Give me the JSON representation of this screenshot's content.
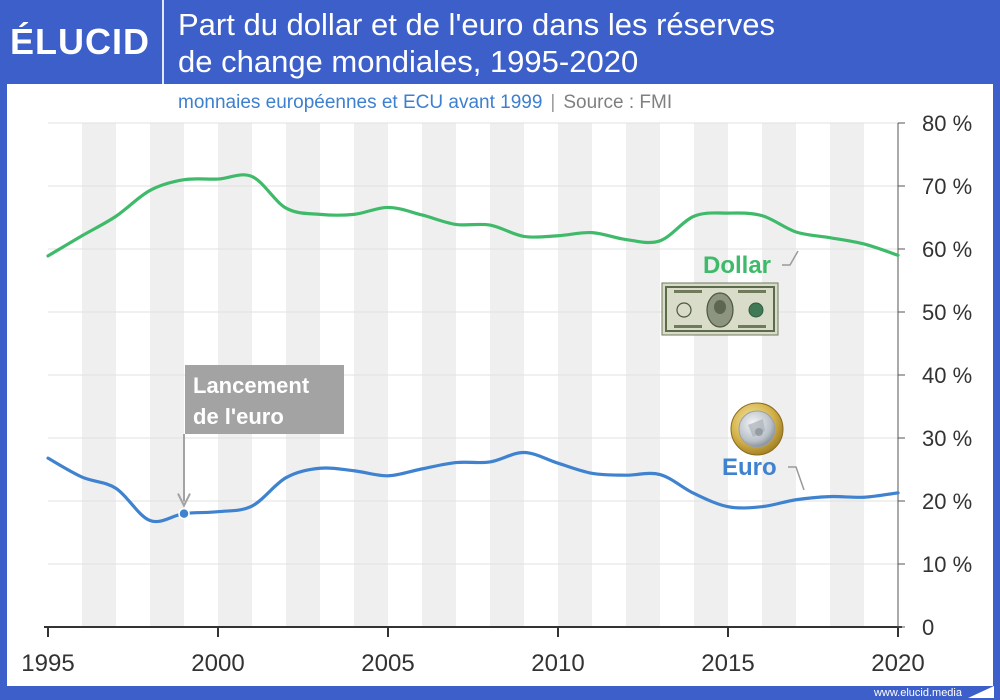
{
  "header": {
    "logo": "ÉLUCID",
    "title_line1": "Part du dollar et de l'euro dans les réserves",
    "title_line2": "de change mondiales, 1995-2020"
  },
  "subtitle": "monnaies européennes et ECU avant 1999",
  "separator": "|",
  "source": "Source : FMI",
  "footer": "www.elucid.media",
  "colors": {
    "frame": "#3d5fc9",
    "dollar": "#3fba6a",
    "euro": "#3f82cf",
    "band": "#efefef",
    "annotation_box": "#a3a3a3"
  },
  "chart_data": {
    "type": "line",
    "title": "Part du dollar et de l'euro dans les réserves de change mondiales, 1995-2020",
    "x": [
      1995,
      1996,
      1997,
      1998,
      1999,
      2000,
      2001,
      2002,
      2003,
      2004,
      2005,
      2006,
      2007,
      2008,
      2009,
      2010,
      2011,
      2012,
      2013,
      2014,
      2015,
      2016,
      2017,
      2018,
      2019,
      2020
    ],
    "xlim": [
      1995,
      2020
    ],
    "ylim": [
      0,
      80
    ],
    "x_ticks": [
      {
        "value": 1995,
        "label": "1995"
      },
      {
        "value": 2000,
        "label": "2000"
      },
      {
        "value": 2005,
        "label": "2005"
      },
      {
        "value": 2010,
        "label": "2010"
      },
      {
        "value": 2015,
        "label": "2015"
      },
      {
        "value": 2020,
        "label": "2020"
      }
    ],
    "y_ticks": [
      {
        "value": 0,
        "label": "0"
      },
      {
        "value": 10,
        "label": "10 %"
      },
      {
        "value": 20,
        "label": "20 %"
      },
      {
        "value": 30,
        "label": "30 %"
      },
      {
        "value": 40,
        "label": "40 %"
      },
      {
        "value": 50,
        "label": "50 %"
      },
      {
        "value": 60,
        "label": "60 %"
      },
      {
        "value": 70,
        "label": "70 %"
      },
      {
        "value": 80,
        "label": "80 %"
      }
    ],
    "grid": true,
    "series": [
      {
        "name": "Dollar",
        "color": "#3fba6a",
        "icon": "dollar-bill-icon",
        "values": [
          58.9,
          62.1,
          65.2,
          69.3,
          71.0,
          71.1,
          71.5,
          66.5,
          65.5,
          65.5,
          66.6,
          65.4,
          63.9,
          63.8,
          62.0,
          62.1,
          62.6,
          61.5,
          61.3,
          65.2,
          65.7,
          65.3,
          62.7,
          61.8,
          60.8,
          59.0
        ]
      },
      {
        "name": "Euro",
        "color": "#3f82cf",
        "icon": "euro-coin-icon",
        "values": [
          26.8,
          23.8,
          22.0,
          16.9,
          18.0,
          18.3,
          19.2,
          23.7,
          25.2,
          24.8,
          24.0,
          25.1,
          26.1,
          26.2,
          27.7,
          26.0,
          24.4,
          24.1,
          24.2,
          21.2,
          19.1,
          19.1,
          20.2,
          20.7,
          20.6,
          21.3
        ]
      }
    ],
    "annotations": [
      {
        "text_line1": "Lancement",
        "text_line2": "de l'euro",
        "x": 1999,
        "y": 18.0
      }
    ]
  }
}
